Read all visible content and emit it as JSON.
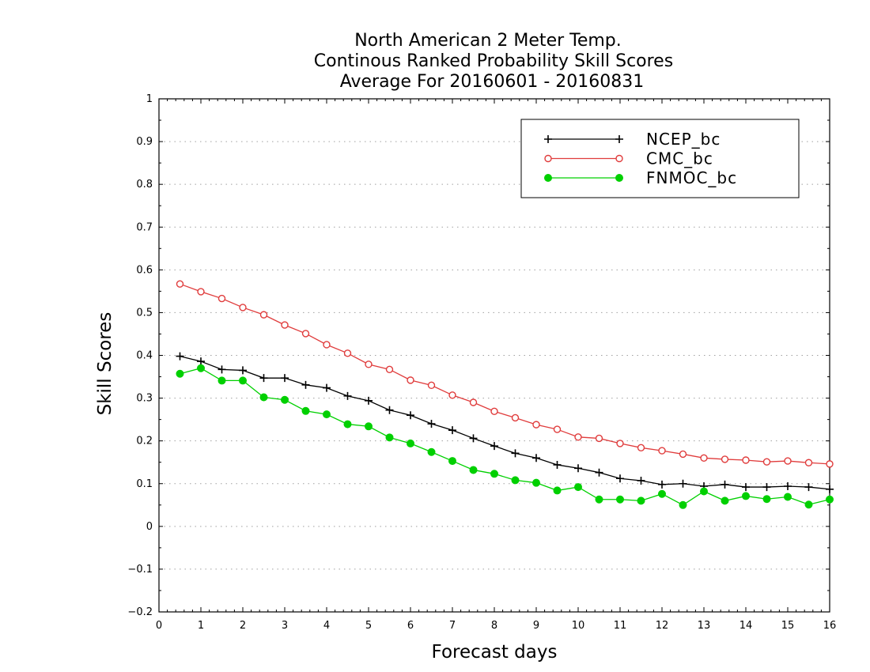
{
  "chart_data": {
    "type": "line",
    "title_lines": [
      "North American 2 Meter Temp.",
      "Continous Ranked Probability Skill Scores",
      "Average For 20160601 - 20160831"
    ],
    "xlabel": "Forecast days",
    "ylabel": "Skill Scores",
    "xlim": [
      0,
      16
    ],
    "ylim": [
      -0.2,
      1
    ],
    "x_ticks": [
      0,
      1,
      2,
      3,
      4,
      5,
      6,
      7,
      8,
      9,
      10,
      11,
      12,
      13,
      14,
      15,
      16
    ],
    "x_tick_labels": [
      "0",
      "1",
      "2",
      "3",
      "4",
      "5",
      "6",
      "7",
      "8",
      "9",
      "10",
      "11",
      "12",
      "13",
      "14",
      "15",
      "16"
    ],
    "y_ticks": [
      -0.2,
      -0.1,
      0,
      0.1,
      0.2,
      0.3,
      0.4,
      0.5,
      0.6,
      0.7,
      0.8,
      0.9,
      1
    ],
    "y_tick_labels": [
      "−0.2",
      "−0.1",
      "0",
      "0.1",
      "0.2",
      "0.3",
      "0.4",
      "0.5",
      "0.6",
      "0.7",
      "0.8",
      "0.9",
      "1"
    ],
    "grid": "horizontal-dotted",
    "legend_position": "top-right",
    "x": [
      0.5,
      1,
      1.5,
      2,
      2.5,
      3,
      3.5,
      4,
      4.5,
      5,
      5.5,
      6,
      6.5,
      7,
      7.5,
      8,
      8.5,
      9,
      9.5,
      10,
      10.5,
      11,
      11.5,
      12,
      12.5,
      13,
      13.5,
      14,
      14.5,
      15,
      15.5,
      16
    ],
    "series": [
      {
        "name": "NCEP_bc",
        "color": "#000000",
        "marker": "plus",
        "values": [
          0.398,
          0.386,
          0.367,
          0.365,
          0.347,
          0.347,
          0.331,
          0.324,
          0.305,
          0.294,
          0.272,
          0.26,
          0.24,
          0.225,
          0.206,
          0.188,
          0.171,
          0.16,
          0.144,
          0.136,
          0.126,
          0.112,
          0.107,
          0.098,
          0.1,
          0.094,
          0.098,
          0.092,
          0.092,
          0.094,
          0.092,
          0.087
        ]
      },
      {
        "name": "CMC_bc",
        "color": "#e03c3c",
        "marker": "open-circle",
        "values": [
          0.567,
          0.549,
          0.533,
          0.512,
          0.495,
          0.471,
          0.451,
          0.425,
          0.405,
          0.379,
          0.367,
          0.342,
          0.33,
          0.307,
          0.29,
          0.269,
          0.254,
          0.238,
          0.227,
          0.209,
          0.206,
          0.194,
          0.184,
          0.177,
          0.169,
          0.16,
          0.157,
          0.155,
          0.151,
          0.153,
          0.149,
          0.146
        ]
      },
      {
        "name": "FNMOC_bc",
        "color": "#00d000",
        "marker": "filled-circle",
        "values": [
          0.357,
          0.37,
          0.341,
          0.341,
          0.302,
          0.296,
          0.27,
          0.262,
          0.239,
          0.234,
          0.208,
          0.194,
          0.174,
          0.153,
          0.132,
          0.123,
          0.108,
          0.102,
          0.084,
          0.092,
          0.063,
          0.063,
          0.06,
          0.076,
          0.05,
          0.082,
          0.06,
          0.071,
          0.064,
          0.069,
          0.051,
          0.063
        ]
      }
    ]
  }
}
